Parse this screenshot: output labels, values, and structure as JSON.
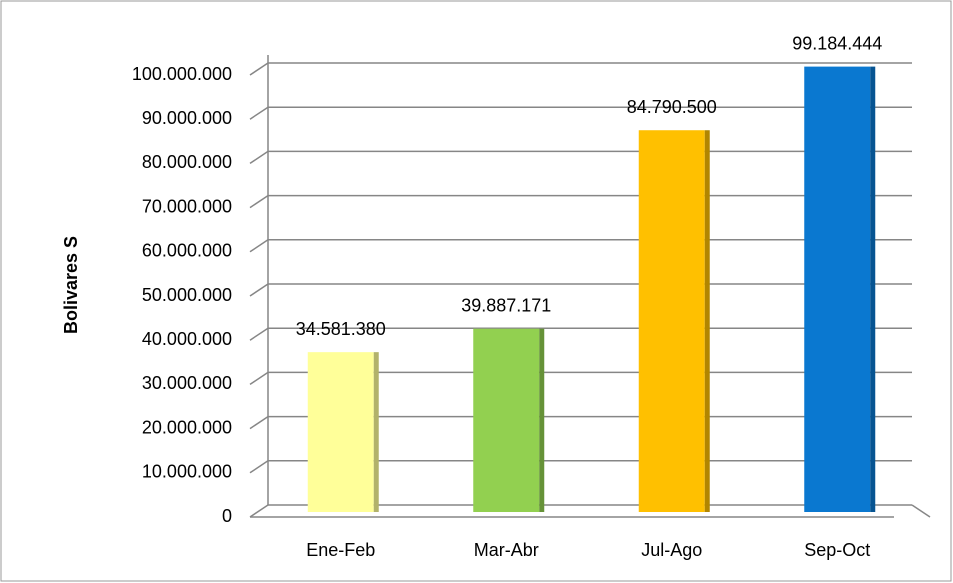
{
  "chart_data": {
    "type": "bar",
    "ylabel": "Bolivares S",
    "categories": [
      "Ene-Feb",
      "Mar-Abr",
      "Jul-Ago",
      "Sep-Oct"
    ],
    "values": [
      34581380,
      39887171,
      84790500,
      99184444
    ],
    "value_labels": [
      "34.581.380",
      "39.887.171",
      "84.790.500",
      "99.184.444"
    ],
    "colors": [
      "#ffff99",
      "#92d050",
      "#ffc000",
      "#0a78d0"
    ],
    "ylim": [
      0,
      100000000
    ],
    "yticks": [
      0,
      {
        "value": 10000000,
        "label": "10.000.000"
      },
      {
        "value": 20000000,
        "label": "20.000.000"
      },
      {
        "value": 30000000,
        "label": "30.000.000"
      },
      {
        "value": 40000000,
        "label": "40.000.000"
      },
      {
        "value": 50000000,
        "label": "50.000.000"
      },
      {
        "value": 60000000,
        "label": "60.000.000"
      },
      {
        "value": 70000000,
        "label": "70.000.000"
      },
      {
        "value": 80000000,
        "label": "80.000.000"
      },
      {
        "value": 90000000,
        "label": "90.000.000"
      },
      {
        "value": 100000000,
        "label": "100.000.000"
      }
    ],
    "grid": true
  }
}
